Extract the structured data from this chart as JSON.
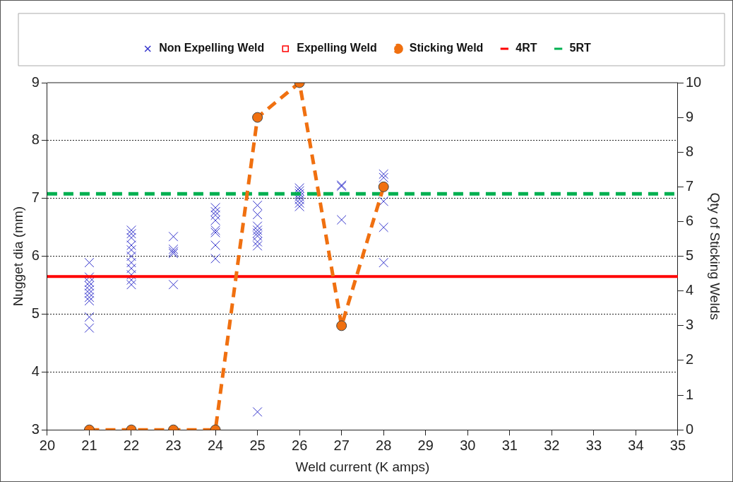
{
  "chart_data": {
    "type": "scatter",
    "xlabel": "Weld current (K amps)",
    "ylabel": "Nugget dia (mm)",
    "y2label": "Qty of Sticking Welds",
    "xlim": [
      20,
      35
    ],
    "xticks": [
      20,
      21,
      22,
      23,
      24,
      25,
      26,
      27,
      28,
      29,
      30,
      31,
      32,
      33,
      34,
      35
    ],
    "ylim": [
      3,
      9
    ],
    "yticks": [
      3,
      4,
      5,
      6,
      7,
      8,
      9
    ],
    "y2lim": [
      0,
      10
    ],
    "y2ticks": [
      0,
      1,
      2,
      3,
      4,
      5,
      6,
      7,
      8,
      9,
      10
    ],
    "grid": "y",
    "legend": "top",
    "series": [
      {
        "name": "Non Expelling Weld",
        "marker": "cross",
        "color": "#3333cc",
        "x": [
          21,
          21,
          21,
          21,
          21,
          21,
          21,
          21,
          21,
          21,
          22,
          22,
          22,
          22,
          22,
          22,
          22,
          22,
          22,
          22,
          22,
          23,
          23,
          23,
          23,
          23,
          24,
          24,
          24,
          24,
          24,
          24,
          24,
          24,
          25,
          25,
          25,
          25,
          25,
          25,
          25,
          25,
          25,
          26,
          26,
          26,
          26,
          26,
          26,
          26,
          27,
          27,
          27,
          28,
          28,
          28,
          28,
          28
        ],
        "values": [
          5.89,
          5.64,
          5.55,
          5.49,
          5.42,
          5.36,
          5.29,
          5.23,
          4.95,
          4.76,
          6.45,
          6.39,
          6.32,
          6.19,
          6.11,
          6.0,
          5.89,
          5.79,
          5.68,
          5.59,
          5.51,
          6.34,
          6.12,
          6.08,
          6.05,
          5.51,
          6.84,
          6.77,
          6.71,
          6.62,
          6.45,
          6.41,
          6.19,
          5.96,
          6.88,
          6.72,
          6.52,
          6.45,
          6.4,
          6.35,
          6.25,
          6.18,
          3.31,
          7.18,
          7.13,
          7.08,
          7.03,
          6.98,
          6.92,
          6.86,
          7.23,
          7.21,
          6.63,
          7.42,
          7.36,
          6.95,
          6.5,
          5.89
        ]
      },
      {
        "name": "Expelling Weld",
        "type": "scatter",
        "marker": "square",
        "color": "#ff0000"
      },
      {
        "name": "Sticking Weld",
        "type": "line",
        "axis": "y2",
        "marker": "circle",
        "line_style": "dashed",
        "color": "#f07010",
        "x": [
          21,
          22,
          23,
          24,
          25,
          26,
          27,
          28
        ],
        "values": [
          0,
          0,
          0,
          0,
          9,
          10,
          3,
          7
        ]
      },
      {
        "name": "4RT",
        "type": "line",
        "marker": "none",
        "line_style": "solid",
        "color": "#ff0000",
        "x": [
          20,
          35
        ],
        "values": [
          5.65,
          5.65
        ]
      },
      {
        "name": "5RT",
        "type": "line",
        "marker": "none",
        "line_style": "dashed",
        "color": "#00b050",
        "x": [
          20,
          35
        ],
        "values": [
          7.08,
          7.08
        ]
      }
    ]
  }
}
